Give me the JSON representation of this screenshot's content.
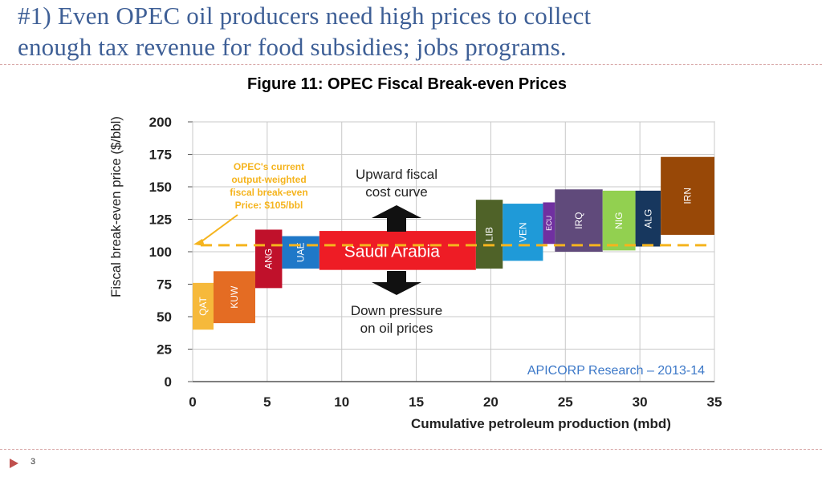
{
  "slide": {
    "title_line1": "#1) Even OPEC oil producers need high prices to collect",
    "title_line2": "enough tax revenue for food subsidies; jobs programs.",
    "page_number": "3"
  },
  "colors": {
    "title": "#3e5f96",
    "breakeven_line": "#f5b41e",
    "arrow": "#111111"
  },
  "chart_data": {
    "type": "bar",
    "subtype": "variable-width cost curve",
    "title": "Figure 11: OPEC Fiscal Break-even Prices",
    "xlabel": "Cumulative petroleum production (mbd)",
    "ylabel": "Fiscal break-even price ($/bbl)",
    "xlim": [
      0,
      35
    ],
    "ylim": [
      0,
      200
    ],
    "x_ticks": [
      0,
      5,
      10,
      15,
      20,
      25,
      30,
      35
    ],
    "y_ticks": [
      0,
      25,
      50,
      75,
      100,
      125,
      150,
      175,
      200
    ],
    "grid": true,
    "bars": [
      {
        "label": "QAT",
        "x_start": 0.0,
        "x_end": 1.4,
        "low": 40,
        "high": 76,
        "color": "#f6b93b"
      },
      {
        "label": "KUW",
        "x_start": 1.4,
        "x_end": 4.2,
        "low": 45,
        "high": 85,
        "color": "#e46c23"
      },
      {
        "label": "ANG",
        "x_start": 4.2,
        "x_end": 6.0,
        "low": 72,
        "high": 117,
        "color": "#c0112b"
      },
      {
        "label": "UAE",
        "x_start": 6.0,
        "x_end": 8.5,
        "low": 87,
        "high": 112,
        "color": "#1f78c8"
      },
      {
        "label": "Saudi Arabia",
        "x_start": 8.5,
        "x_end": 19.0,
        "low": 86,
        "high": 116,
        "color": "#ee1c25"
      },
      {
        "label": "LIB",
        "x_start": 19.0,
        "x_end": 20.8,
        "low": 87,
        "high": 140,
        "color": "#4f6228"
      },
      {
        "label": "VEN",
        "x_start": 20.8,
        "x_end": 23.5,
        "low": 93,
        "high": 137,
        "color": "#1f9ad8"
      },
      {
        "label": "ECU",
        "x_start": 23.5,
        "x_end": 24.3,
        "low": 106,
        "high": 138,
        "color": "#7030a0"
      },
      {
        "label": "IRQ",
        "x_start": 24.3,
        "x_end": 27.5,
        "low": 100,
        "high": 148,
        "color": "#604a7b"
      },
      {
        "label": "NIG",
        "x_start": 27.5,
        "x_end": 29.7,
        "low": 101,
        "high": 147,
        "color": "#92d050"
      },
      {
        "label": "ALG",
        "x_start": 29.7,
        "x_end": 31.4,
        "low": 104,
        "high": 147,
        "color": "#17375e"
      },
      {
        "label": "IRN",
        "x_start": 31.4,
        "x_end": 35.0,
        "low": 113,
        "high": 173,
        "color": "#984807"
      }
    ],
    "reference_line": {
      "value": 105
    },
    "annotations": {
      "breakeven_lines": [
        "OPEC's current",
        "output-weighted",
        "fiscal break-even",
        "Price: $105/bbl"
      ],
      "upward_lines": [
        "Upward fiscal",
        "cost curve"
      ],
      "down_lines": [
        "Down pressure",
        "on oil prices"
      ],
      "source": "APICORP Research – 2013-14"
    }
  }
}
